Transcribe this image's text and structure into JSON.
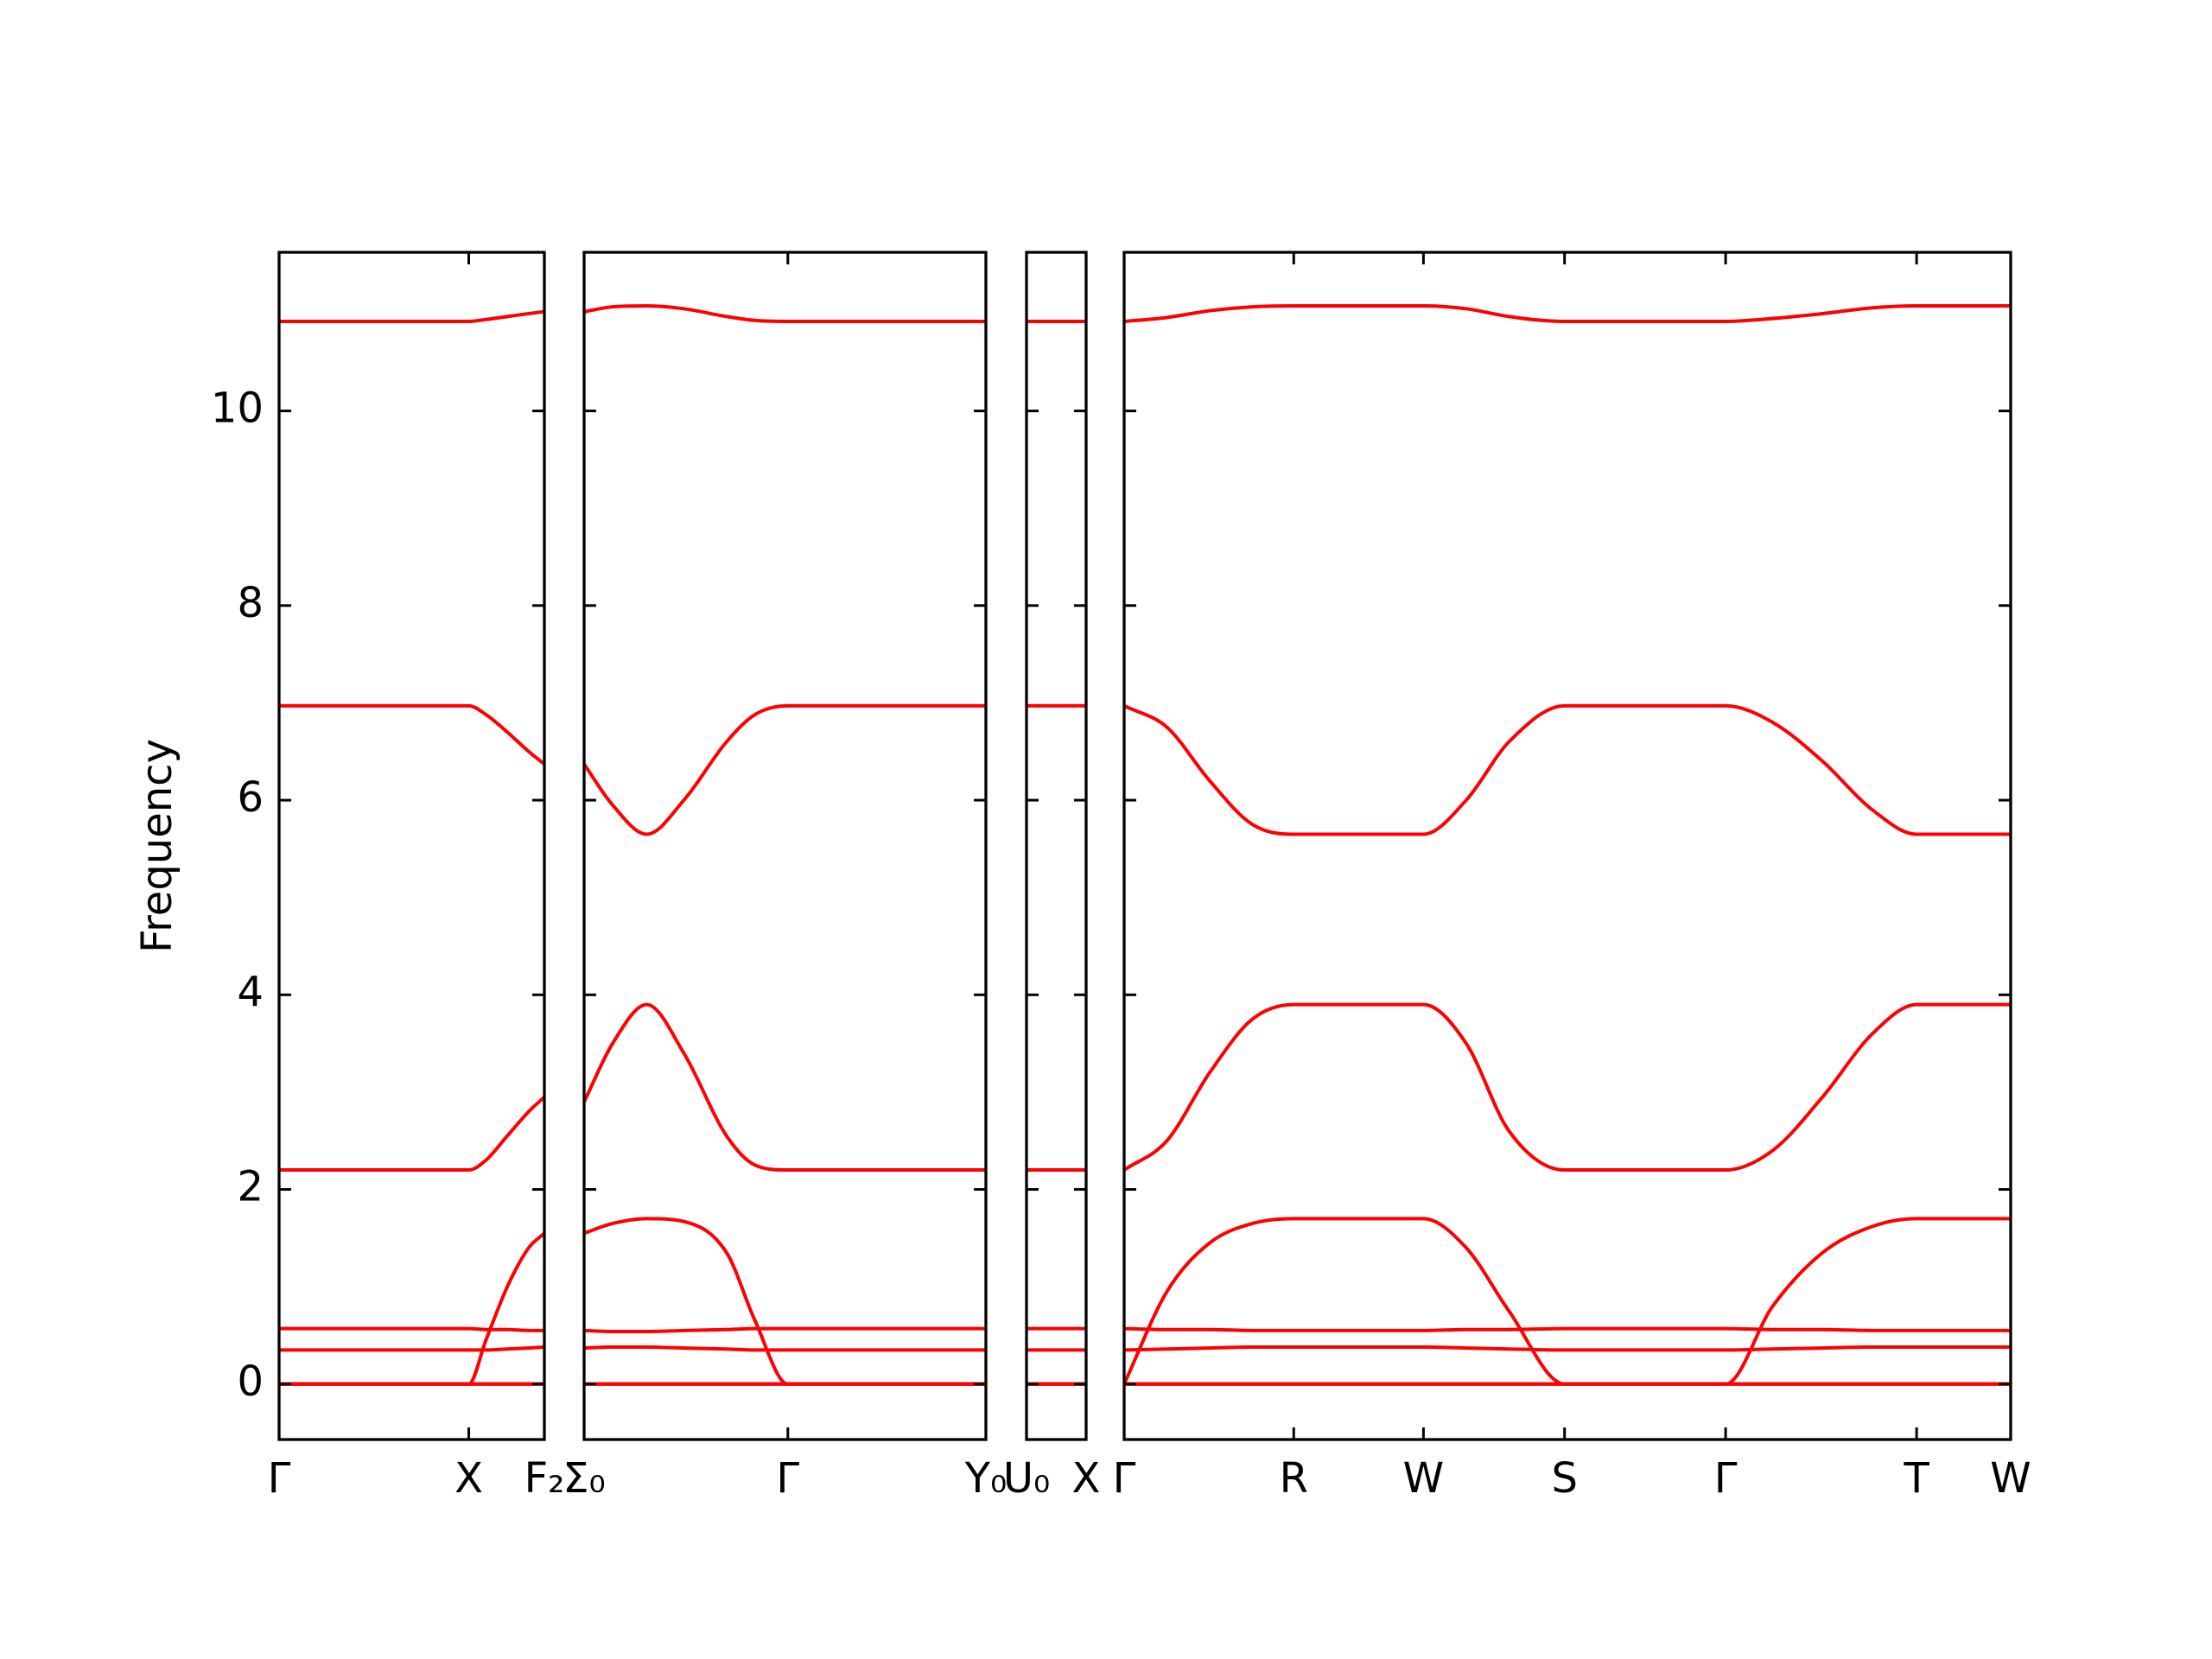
{
  "chart_data": [
    {
      "type": "line",
      "ylabel": "Frequency",
      "x": [
        0,
        1.33,
        1.45,
        1.6,
        1.75,
        1.86
      ],
      "xlim": [
        0,
        1.86
      ],
      "xticks": [
        {
          "value": 0,
          "label": "Γ"
        },
        {
          "value": 1.33,
          "label": "X"
        },
        {
          "value": 1.86,
          "label": "F₂"
        }
      ],
      "ylim": [
        -0.57,
        11.63
      ],
      "yticks": [
        0,
        2,
        4,
        6,
        8,
        10
      ],
      "series": [
        {
          "color": "#ff0000",
          "values": [
            0,
            0,
            0,
            0,
            0,
            0
          ]
        },
        {
          "color": "#ff0000",
          "values": [
            0,
            0,
            0,
            0,
            0,
            0
          ]
        },
        {
          "color": "#ff0000",
          "values": [
            0,
            0,
            0.45,
            1.0,
            1.4,
            1.55
          ]
        },
        {
          "color": "#ff0000",
          "values": [
            0.35,
            0.35,
            0.35,
            0.36,
            0.37,
            0.38
          ]
        },
        {
          "color": "#ff0000",
          "values": [
            0.57,
            0.57,
            0.56,
            0.56,
            0.55,
            0.55
          ]
        },
        {
          "color": "#ff0000",
          "values": [
            2.2,
            2.2,
            2.3,
            2.55,
            2.8,
            2.95
          ]
        },
        {
          "color": "#ff0000",
          "values": [
            6.97,
            6.97,
            6.88,
            6.7,
            6.5,
            6.37
          ]
        },
        {
          "color": "#ff0000",
          "values": [
            10.92,
            10.92,
            10.94,
            10.97,
            11.0,
            11.02
          ]
        }
      ]
    },
    {
      "type": "line",
      "x": [
        0,
        0.2,
        0.44,
        0.7,
        1.0,
        1.2,
        1.43,
        2.82
      ],
      "xlim": [
        0,
        2.82
      ],
      "xticks": [
        {
          "value": 0,
          "label": "Σ₀"
        },
        {
          "value": 1.43,
          "label": "Γ"
        },
        {
          "value": 2.82,
          "label": "Y₀"
        }
      ],
      "ylim": [
        -0.57,
        11.63
      ],
      "yticks": [
        0,
        2,
        4,
        6,
        8,
        10
      ],
      "series": [
        {
          "color": "#ff0000",
          "values": [
            0,
            0,
            0,
            0,
            0,
            0,
            0,
            0
          ]
        },
        {
          "color": "#ff0000",
          "values": [
            0,
            0,
            0,
            0,
            0,
            0,
            0,
            0
          ]
        },
        {
          "color": "#ff0000",
          "values": [
            1.55,
            1.65,
            1.7,
            1.67,
            1.35,
            0.65,
            0,
            0
          ]
        },
        {
          "color": "#ff0000",
          "values": [
            0.37,
            0.38,
            0.38,
            0.37,
            0.36,
            0.35,
            0.35,
            0.35
          ]
        },
        {
          "color": "#ff0000",
          "values": [
            0.55,
            0.54,
            0.54,
            0.55,
            0.56,
            0.57,
            0.57,
            0.57
          ]
        },
        {
          "color": "#ff0000",
          "values": [
            2.9,
            3.5,
            3.9,
            3.4,
            2.55,
            2.25,
            2.2,
            2.2
          ]
        },
        {
          "color": "#ff0000",
          "values": [
            6.37,
            5.95,
            5.65,
            6.0,
            6.6,
            6.88,
            6.97,
            6.97
          ]
        },
        {
          "color": "#ff0000",
          "values": [
            11.02,
            11.07,
            11.08,
            11.05,
            10.97,
            10.93,
            10.92,
            10.92
          ]
        }
      ]
    },
    {
      "type": "line",
      "x": [
        0,
        0.42
      ],
      "xlim": [
        0,
        0.42
      ],
      "xticks": [
        {
          "value": 0,
          "label": "U₀"
        },
        {
          "value": 0.42,
          "label": "X"
        }
      ],
      "ylim": [
        -0.57,
        11.63
      ],
      "yticks": [
        0,
        2,
        4,
        6,
        8,
        10
      ],
      "series": [
        {
          "color": "#ff0000",
          "values": [
            0,
            0
          ]
        },
        {
          "color": "#ff0000",
          "values": [
            0,
            0
          ]
        },
        {
          "color": "#ff0000",
          "values": [
            0,
            0
          ]
        },
        {
          "color": "#ff0000",
          "values": [
            0.35,
            0.35
          ]
        },
        {
          "color": "#ff0000",
          "values": [
            0.57,
            0.57
          ]
        },
        {
          "color": "#ff0000",
          "values": [
            2.2,
            2.2
          ]
        },
        {
          "color": "#ff0000",
          "values": [
            6.97,
            6.97
          ]
        },
        {
          "color": "#ff0000",
          "values": [
            10.92,
            10.92
          ]
        }
      ]
    },
    {
      "type": "line",
      "x": [
        0,
        0.3,
        0.6,
        0.9,
        1.19,
        2.1,
        2.4,
        2.7,
        3.09,
        4.22,
        4.55,
        4.9,
        5.25,
        5.56,
        6.22
      ],
      "xlim": [
        0,
        6.22
      ],
      "xticks": [
        {
          "value": 0,
          "label": "Γ"
        },
        {
          "value": 1.19,
          "label": "R"
        },
        {
          "value": 2.1,
          "label": "W"
        },
        {
          "value": 3.09,
          "label": "S"
        },
        {
          "value": 4.22,
          "label": "Γ"
        },
        {
          "value": 5.56,
          "label": "T"
        },
        {
          "value": 6.22,
          "label": "W"
        }
      ],
      "ylim": [
        -0.57,
        11.63
      ],
      "yticks": [
        0,
        2,
        4,
        6,
        8,
        10
      ],
      "series": [
        {
          "color": "#ff0000",
          "values": [
            0,
            0,
            0,
            0,
            0,
            0,
            0,
            0,
            0,
            0,
            0,
            0,
            0,
            0,
            0
          ]
        },
        {
          "color": "#ff0000",
          "values": [
            0,
            0,
            0,
            0,
            0,
            0,
            0,
            0,
            0,
            0,
            0,
            0,
            0,
            0,
            0
          ]
        },
        {
          "color": "#ff0000",
          "values": [
            0,
            0.95,
            1.45,
            1.65,
            1.7,
            1.7,
            1.4,
            0.75,
            0,
            0,
            0.8,
            1.35,
            1.62,
            1.7,
            1.7
          ]
        },
        {
          "color": "#ff0000",
          "values": [
            0.35,
            0.36,
            0.37,
            0.38,
            0.38,
            0.38,
            0.37,
            0.36,
            0.35,
            0.35,
            0.36,
            0.37,
            0.38,
            0.38,
            0.38
          ]
        },
        {
          "color": "#ff0000",
          "values": [
            0.57,
            0.56,
            0.56,
            0.55,
            0.55,
            0.55,
            0.56,
            0.56,
            0.57,
            0.57,
            0.56,
            0.56,
            0.55,
            0.55,
            0.55
          ]
        },
        {
          "color": "#ff0000",
          "values": [
            2.2,
            2.5,
            3.2,
            3.75,
            3.9,
            3.9,
            3.5,
            2.6,
            2.2,
            2.2,
            2.4,
            2.95,
            3.6,
            3.9,
            3.9
          ]
        },
        {
          "color": "#ff0000",
          "values": [
            6.97,
            6.75,
            6.2,
            5.75,
            5.65,
            5.65,
            6.0,
            6.6,
            6.97,
            6.97,
            6.8,
            6.4,
            5.9,
            5.65,
            5.65
          ]
        },
        {
          "color": "#ff0000",
          "values": [
            10.92,
            10.96,
            11.03,
            11.07,
            11.08,
            11.08,
            11.05,
            10.97,
            10.92,
            10.92,
            10.95,
            11.0,
            11.06,
            11.08,
            11.08
          ]
        }
      ]
    }
  ]
}
